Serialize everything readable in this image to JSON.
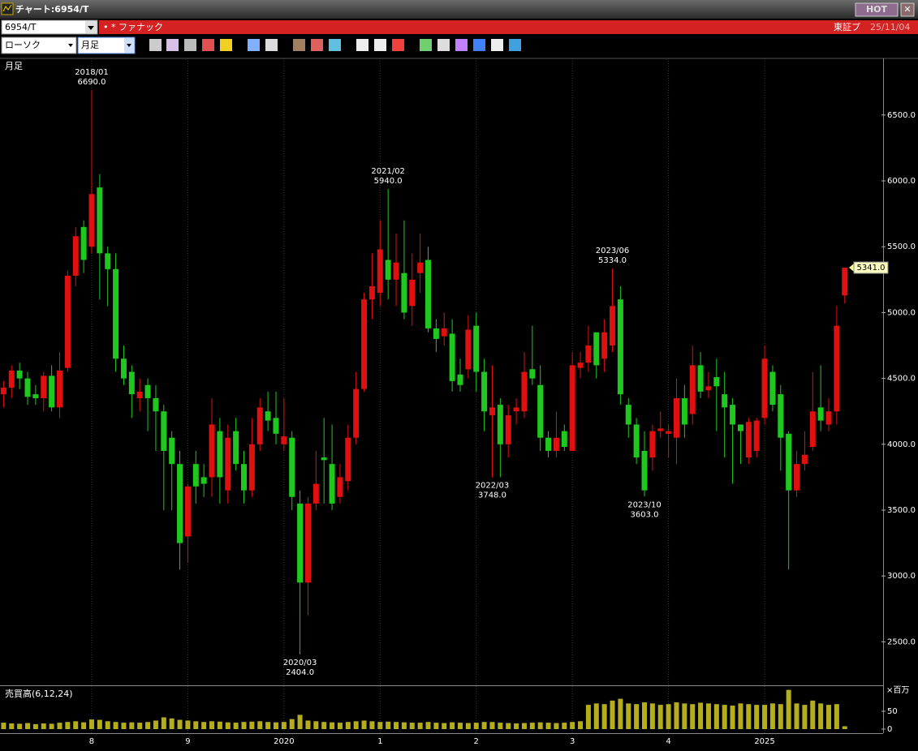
{
  "window": {
    "title": "チャート:6954/T",
    "hot": "HOT",
    "code": "6954/T",
    "name": "• * ファナック",
    "market": "東証プ",
    "date": "25/11/04",
    "chart_style": "ローソク",
    "period": "月足",
    "panel_label": "月足"
  },
  "chart_data": [
    {
      "type": "candlestick",
      "up_color": "#e01010",
      "down_color": "#1ec81e",
      "open": [
        4380,
        4430,
        4560,
        4500,
        4380,
        4350,
        4520,
        4280,
        4580,
        5280,
        5650,
        5500,
        5950,
        5450,
        5330,
        4650,
        4550,
        4350,
        4450,
        4350,
        4250,
        4050,
        3850,
        3300,
        3850,
        3750,
        3750,
        4100,
        3650,
        4100,
        3850,
        3650,
        4000,
        4250,
        4200,
        4000,
        4050,
        3550,
        2950,
        3550,
        3900,
        3850,
        3600,
        3720,
        4050,
        4420,
        5100,
        5150,
        5400,
        5250,
        5300,
        5050,
        5300,
        5400,
        4880,
        4820,
        4840,
        4530,
        4570,
        4900,
        4550,
        4220,
        4300,
        4000,
        4250,
        4250,
        4570,
        4450,
        4050,
        3950,
        4100,
        3950,
        4580,
        4620,
        4850,
        4650,
        4750,
        5100,
        4300,
        4150,
        3950,
        3900,
        4100,
        4080,
        4050,
        4350,
        4230,
        4600,
        4410,
        4510,
        4380,
        4300,
        4150,
        3900,
        3950,
        4200,
        4550,
        4380,
        4080,
        3650,
        3850,
        3980,
        4280,
        4150,
        4250,
        5130
      ],
      "high": [
        4480,
        4600,
        4620,
        4550,
        4450,
        4550,
        4600,
        4700,
        5320,
        5650,
        5700,
        6690,
        6050,
        5500,
        5450,
        4750,
        4600,
        4500,
        4500,
        4450,
        4300,
        4100,
        3950,
        3700,
        3950,
        3850,
        4350,
        4200,
        4150,
        4200,
        3950,
        4200,
        4350,
        4400,
        4400,
        4350,
        4100,
        3650,
        3600,
        3950,
        4200,
        4150,
        3850,
        4150,
        4550,
        5150,
        5450,
        5700,
        5940,
        5600,
        5700,
        5450,
        5600,
        5500,
        4950,
        5000,
        4950,
        4650,
        4980,
        5000,
        4650,
        4600,
        4350,
        4300,
        4350,
        4700,
        4900,
        4600,
        4100,
        4250,
        4150,
        4700,
        4700,
        4900,
        4850,
        4950,
        5334,
        5200,
        4350,
        4200,
        4100,
        4150,
        4250,
        4150,
        4500,
        4450,
        4750,
        4700,
        4550,
        4650,
        4550,
        4350,
        4150,
        4200,
        4200,
        4750,
        4600,
        4450,
        4100,
        3950,
        4100,
        4550,
        4600,
        4350,
        5050,
        5341
      ],
      "low": [
        4280,
        4350,
        4420,
        4300,
        4300,
        4250,
        4250,
        4200,
        4550,
        5200,
        5300,
        5450,
        5100,
        5050,
        4550,
        4450,
        4200,
        4250,
        4100,
        3950,
        3500,
        3500,
        3050,
        3100,
        3550,
        3600,
        3600,
        3550,
        3550,
        3800,
        3550,
        3600,
        3950,
        4100,
        4000,
        3950,
        3500,
        2404,
        2700,
        3500,
        3550,
        3500,
        3550,
        3650,
        4000,
        4400,
        4950,
        5050,
        5100,
        5050,
        4950,
        4900,
        5150,
        4850,
        4700,
        4750,
        4400,
        4400,
        4500,
        4400,
        4100,
        3748,
        3750,
        3900,
        4150,
        4200,
        4450,
        3950,
        3900,
        3900,
        3950,
        3950,
        4500,
        4550,
        4500,
        4550,
        4700,
        4300,
        4050,
        3850,
        3603,
        3800,
        4050,
        3900,
        3850,
        4050,
        4150,
        4350,
        4350,
        4100,
        3900,
        3700,
        3850,
        3850,
        3900,
        4150,
        4250,
        3800,
        3050,
        3600,
        3800,
        3950,
        4100,
        4100,
        4150,
        5070
      ],
      "close": [
        4430,
        4560,
        4500,
        4360,
        4350,
        4520,
        4280,
        4560,
        5280,
        5580,
        5400,
        5900,
        5450,
        5330,
        4650,
        4500,
        4380,
        4400,
        4350,
        4250,
        3950,
        3850,
        3250,
        3680,
        3680,
        3700,
        4150,
        3750,
        4050,
        3850,
        3650,
        4000,
        4280,
        4180,
        4080,
        4060,
        3600,
        2950,
        3550,
        3700,
        3880,
        3550,
        3750,
        4050,
        4420,
        5100,
        5200,
        5480,
        5250,
        5380,
        5000,
        5250,
        5380,
        4880,
        4800,
        4880,
        4480,
        4450,
        4870,
        4550,
        4250,
        4280,
        4000,
        4220,
        4280,
        4550,
        4500,
        4050,
        3950,
        4050,
        3980,
        4600,
        4620,
        4750,
        4600,
        4850,
        5050,
        4380,
        4150,
        3900,
        3650,
        4100,
        4120,
        4100,
        4350,
        4150,
        4600,
        4400,
        4440,
        4440,
        4280,
        4150,
        4100,
        4170,
        4180,
        4650,
        4300,
        4050,
        3650,
        3850,
        3920,
        4250,
        4180,
        4250,
        4900,
        5341
      ],
      "ylim": [
        2170,
        6930
      ],
      "yticks": [
        {
          "value": 2500,
          "label": "2500.0"
        },
        {
          "value": 3000,
          "label": "3000.0"
        },
        {
          "value": 3500,
          "label": "3500.0"
        },
        {
          "value": 4000,
          "label": "4000.0"
        },
        {
          "value": 4500,
          "label": "4500.0"
        },
        {
          "value": 5000,
          "label": "5000.0"
        },
        {
          "value": 5500,
          "label": "5500.0"
        },
        {
          "value": 6000,
          "label": "6000.0"
        },
        {
          "value": 6500,
          "label": "6500.0"
        }
      ],
      "annotations": [
        {
          "label": "2018/01",
          "value": 6690,
          "value_label": "6690.0"
        },
        {
          "label": "2020/03",
          "value": 2404,
          "value_label": "2404.0"
        },
        {
          "label": "2021/02",
          "value": 5940,
          "value_label": "5940.0"
        },
        {
          "label": "2022/03",
          "value": 3748,
          "value_label": "3748.0"
        },
        {
          "label": "2023/06",
          "value": 5334,
          "value_label": "5334.0"
        },
        {
          "label": "2023/10",
          "value": 3603,
          "value_label": "3603.0"
        }
      ],
      "last_price": {
        "value": 5341,
        "label": "5341.0"
      }
    },
    {
      "type": "bar",
      "title": "売買高(6,12,24)",
      "unit": "×百万",
      "color": "#b4ae1c",
      "categories": [
        null,
        null,
        null,
        null,
        null,
        null,
        null,
        null,
        null,
        null,
        null,
        "8",
        null,
        null,
        null,
        null,
        null,
        null,
        null,
        null,
        null,
        null,
        null,
        "9",
        null,
        null,
        null,
        null,
        null,
        null,
        null,
        null,
        null,
        null,
        null,
        "2020",
        null,
        null,
        null,
        null,
        null,
        null,
        null,
        null,
        null,
        null,
        null,
        "1",
        null,
        null,
        null,
        null,
        null,
        null,
        null,
        null,
        null,
        null,
        null,
        "2",
        null,
        null,
        null,
        null,
        null,
        null,
        null,
        null,
        null,
        null,
        null,
        "3",
        null,
        null,
        null,
        null,
        null,
        null,
        null,
        null,
        null,
        null,
        null,
        "4",
        null,
        null,
        null,
        null,
        null,
        null,
        null,
        null,
        null,
        null,
        null,
        "2025",
        null,
        null,
        null,
        null,
        null,
        null,
        null,
        null,
        null,
        null
      ],
      "values": [
        18,
        16,
        15,
        17,
        14,
        16,
        15,
        18,
        20,
        22,
        19,
        27,
        26,
        22,
        20,
        18,
        19,
        18,
        20,
        24,
        33,
        30,
        26,
        24,
        22,
        20,
        22,
        21,
        19,
        18,
        20,
        21,
        22,
        20,
        19,
        20,
        28,
        40,
        24,
        22,
        20,
        19,
        18,
        20,
        22,
        24,
        22,
        20,
        21,
        20,
        19,
        18,
        18,
        20,
        18,
        17,
        19,
        18,
        17,
        18,
        20,
        20,
        18,
        17,
        16,
        17,
        18,
        19,
        18,
        17,
        18,
        20,
        22,
        68,
        72,
        70,
        80,
        85,
        72,
        70,
        75,
        72,
        68,
        70,
        75,
        72,
        70,
        74,
        72,
        70,
        68,
        66,
        72,
        70,
        68,
        68,
        72,
        70,
        110,
        72,
        68,
        80,
        72,
        68,
        70,
        8
      ],
      "ylim": [
        0,
        116
      ],
      "yticks": [
        0,
        50
      ]
    }
  ]
}
